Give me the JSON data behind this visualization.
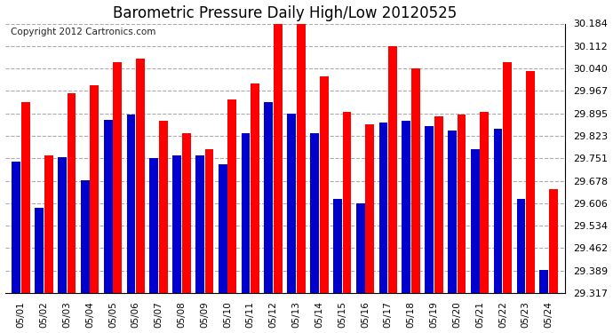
{
  "title": "Barometric Pressure Daily High/Low 20120525",
  "copyright": "Copyright 2012 Cartronics.com",
  "dates": [
    "05/01",
    "05/02",
    "05/03",
    "05/04",
    "05/05",
    "05/06",
    "05/07",
    "05/08",
    "05/09",
    "05/10",
    "05/11",
    "05/12",
    "05/13",
    "05/14",
    "05/15",
    "05/16",
    "05/17",
    "05/18",
    "05/19",
    "05/20",
    "05/21",
    "05/22",
    "05/23",
    "05/24"
  ],
  "highs": [
    29.93,
    29.76,
    29.96,
    29.985,
    30.06,
    30.07,
    29.87,
    29.83,
    29.78,
    29.94,
    29.99,
    30.184,
    30.184,
    30.014,
    29.9,
    29.86,
    30.112,
    30.04,
    29.885,
    29.89,
    29.9,
    30.06,
    30.03,
    29.65
  ],
  "lows": [
    29.74,
    29.59,
    29.755,
    29.68,
    29.875,
    29.89,
    29.75,
    29.76,
    29.76,
    29.73,
    29.83,
    29.93,
    29.895,
    29.83,
    29.62,
    29.605,
    29.865,
    29.87,
    29.855,
    29.84,
    29.78,
    29.845,
    29.62,
    29.39
  ],
  "bar_color_high": "#FF0000",
  "bar_color_low": "#0000CC",
  "bg_color": "#FFFFFF",
  "plot_bg_color": "#FFFFFF",
  "grid_color": "#AAAAAA",
  "ylim_min": 29.317,
  "ylim_max": 30.184,
  "yticks": [
    29.317,
    29.389,
    29.462,
    29.534,
    29.606,
    29.678,
    29.751,
    29.823,
    29.895,
    29.967,
    30.04,
    30.112,
    30.184
  ],
  "title_fontsize": 12,
  "copyright_fontsize": 7.5
}
